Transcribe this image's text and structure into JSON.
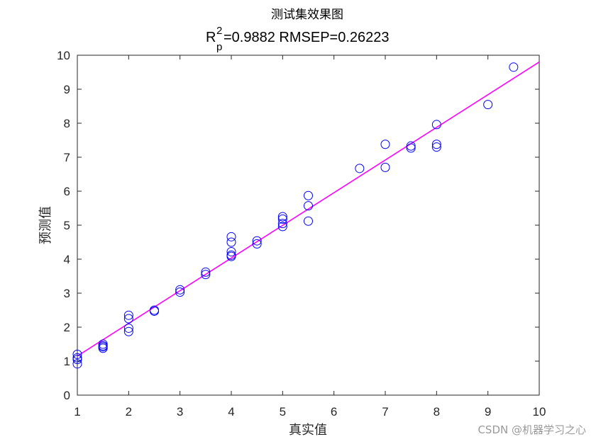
{
  "chart_data": {
    "type": "scatter",
    "title": "测试集效果图",
    "subtitle": {
      "r_base": "R",
      "r_sup": "2",
      "r_sub": "p",
      "rest": "=0.9882  RMSEP=0.26223"
    },
    "xlabel": "真实值",
    "ylabel": "预测值",
    "xlim": [
      1,
      10
    ],
    "ylim": [
      0,
      10
    ],
    "xticks": [
      "1",
      "2",
      "3",
      "4",
      "5",
      "6",
      "7",
      "8",
      "9",
      "10"
    ],
    "yticks": [
      "0",
      "1",
      "2",
      "3",
      "4",
      "5",
      "6",
      "7",
      "8",
      "9",
      "10"
    ],
    "grid": false,
    "series": [
      {
        "kind": "scatter",
        "marker": "circle",
        "color": "#0000ff",
        "points": [
          [
            1,
            0.92
          ],
          [
            1,
            1.05
          ],
          [
            1,
            1.1
          ],
          [
            1,
            1.2
          ],
          [
            1.5,
            1.38
          ],
          [
            1.5,
            1.42
          ],
          [
            1.5,
            1.45
          ],
          [
            1.5,
            1.5
          ],
          [
            2,
            1.87
          ],
          [
            2,
            1.97
          ],
          [
            2,
            2.25
          ],
          [
            2,
            2.35
          ],
          [
            2.5,
            2.47
          ],
          [
            2.5,
            2.5
          ],
          [
            3,
            3.03
          ],
          [
            3,
            3.1
          ],
          [
            3.5,
            3.55
          ],
          [
            3.5,
            3.62
          ],
          [
            4,
            4.08
          ],
          [
            4,
            4.12
          ],
          [
            4,
            4.22
          ],
          [
            4,
            4.5
          ],
          [
            4,
            4.66
          ],
          [
            4.5,
            4.45
          ],
          [
            4.5,
            4.54
          ],
          [
            5,
            4.96
          ],
          [
            5,
            5.05
          ],
          [
            5,
            5.18
          ],
          [
            5,
            5.25
          ],
          [
            5.5,
            5.12
          ],
          [
            5.5,
            5.57
          ],
          [
            5.5,
            5.87
          ],
          [
            6.5,
            6.67
          ],
          [
            7,
            6.7
          ],
          [
            7,
            7.38
          ],
          [
            7.5,
            7.27
          ],
          [
            7.5,
            7.33
          ],
          [
            8,
            7.3
          ],
          [
            8,
            7.38
          ],
          [
            8,
            7.96
          ],
          [
            9,
            8.55
          ],
          [
            9.5,
            9.65
          ]
        ]
      },
      {
        "kind": "line",
        "color": "#ff00ff",
        "points": [
          [
            1,
            1.15
          ],
          [
            10,
            9.8
          ]
        ]
      }
    ],
    "watermark": "CSDN @机器学习之心"
  }
}
